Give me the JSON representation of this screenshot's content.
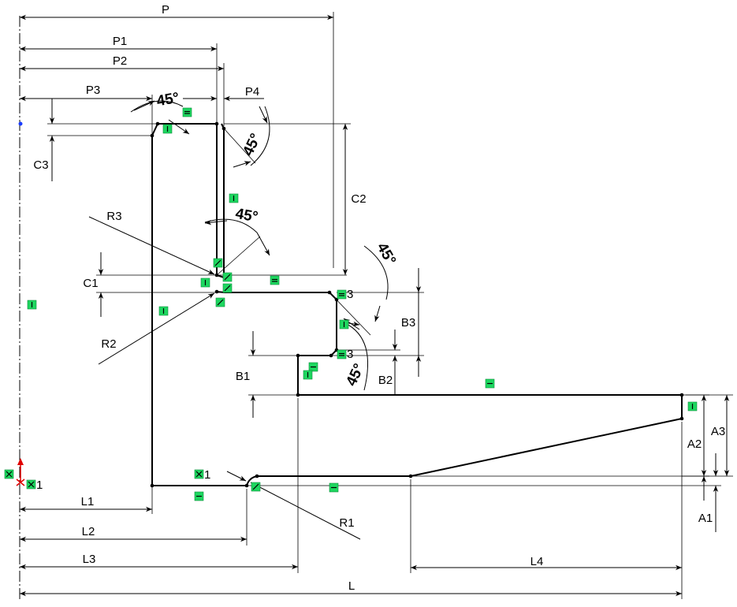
{
  "dimensions": {
    "P": "P",
    "P1": "P1",
    "P2": "P2",
    "P3": "P3",
    "P4": "P4",
    "C1": "C1",
    "C2": "C2",
    "C3": "C3",
    "R1": "R1",
    "R2": "R2",
    "R3": "R3",
    "B1": "B1",
    "B2": "B2",
    "B3": "B3",
    "A1": "A1",
    "A2": "A2",
    "A3": "A3",
    "L": "L",
    "L1": "L1",
    "L2": "L2",
    "L3": "L3",
    "L4": "L4"
  },
  "angles": {
    "top_chamfer": "45°",
    "right_chamfer": "45°",
    "mid_chamfer": "45°",
    "step_upper": "45°",
    "step_lower": "45°"
  },
  "relation_count": "3",
  "relation_count_mark": "1",
  "colors": {
    "relation_fill": "#1ed760",
    "line": "#000000",
    "origin_x": "#e00000",
    "origin_point": "#1a3cff"
  }
}
